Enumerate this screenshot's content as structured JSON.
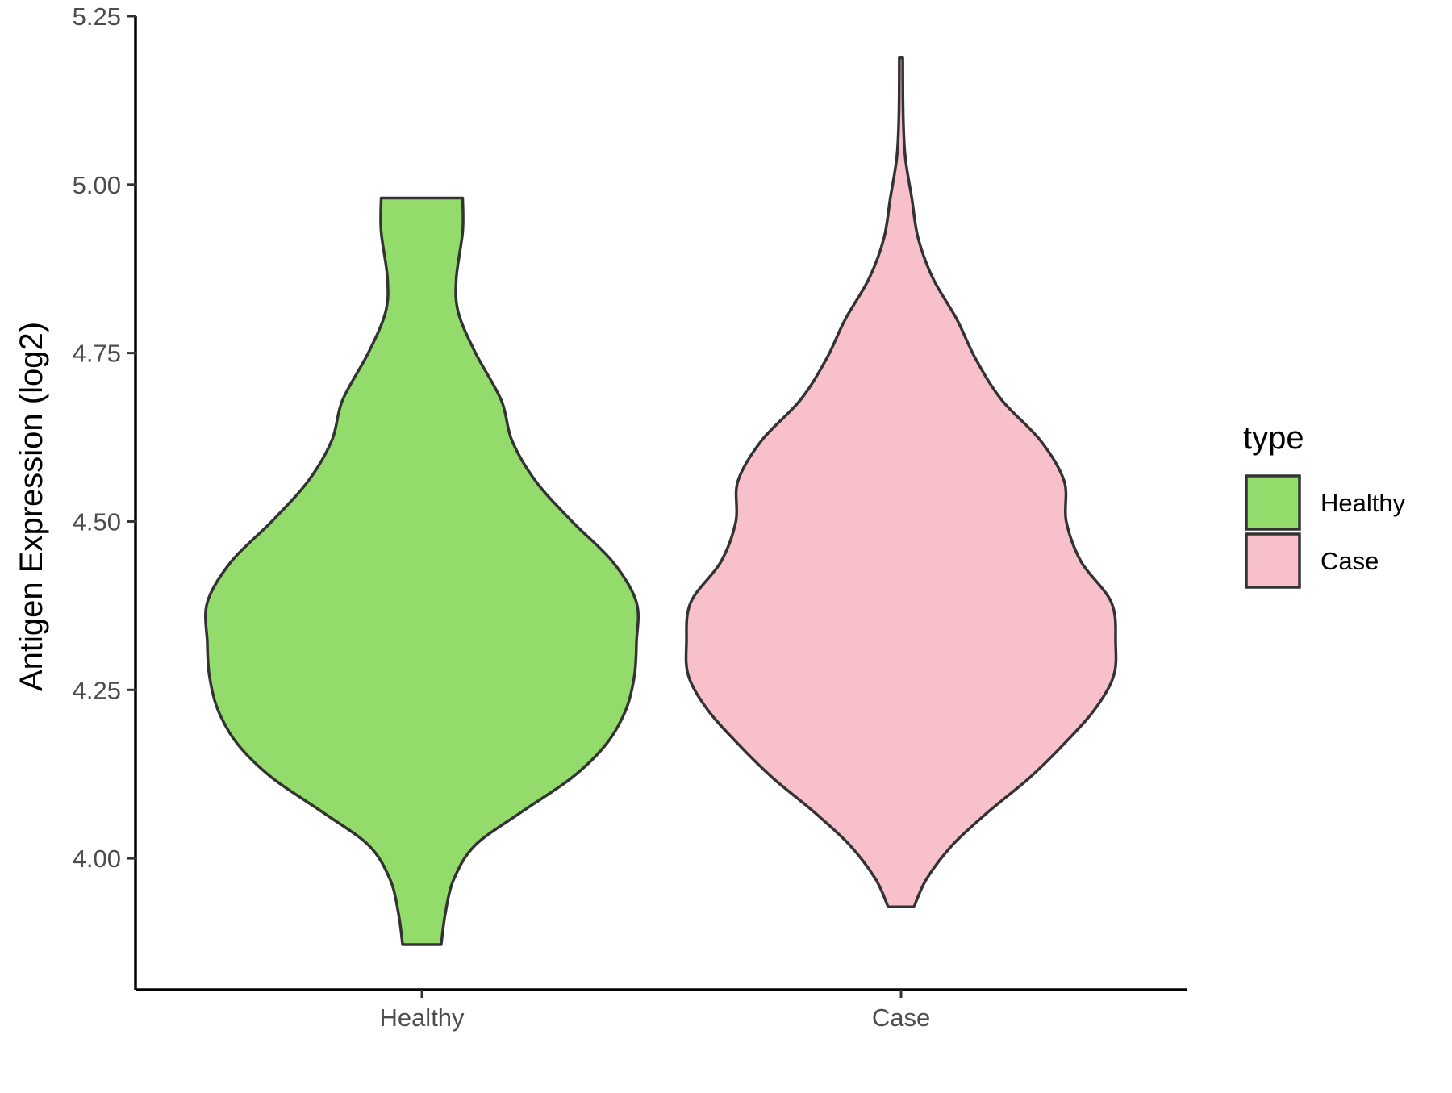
{
  "chart_data": {
    "type": "violin",
    "title": "",
    "xlabel": "",
    "ylabel": "Antigen Expression (log2)",
    "ylim": [
      3.805,
      5.25
    ],
    "yticks": [
      4.0,
      4.25,
      4.5,
      4.75,
      5.0,
      5.25
    ],
    "ytick_labels": [
      "4.00",
      "4.25",
      "4.50",
      "4.75",
      "5.00",
      "5.25"
    ],
    "categories": [
      "Healthy",
      "Case"
    ],
    "grid": false,
    "legend": {
      "title": "type",
      "position": "right",
      "entries": [
        {
          "label": "Healthy",
          "color": "#93dc6b"
        },
        {
          "label": "Case",
          "color": "#f8c0cb"
        }
      ]
    },
    "series": [
      {
        "category": "Healthy",
        "color": "#93dc6b",
        "min": 3.872,
        "max": 4.98,
        "density_profile": [
          [
            3.872,
            0.09
          ],
          [
            3.92,
            0.11
          ],
          [
            3.97,
            0.15
          ],
          [
            4.02,
            0.25
          ],
          [
            4.07,
            0.47
          ],
          [
            4.12,
            0.7
          ],
          [
            4.17,
            0.86
          ],
          [
            4.22,
            0.95
          ],
          [
            4.27,
            0.99
          ],
          [
            4.32,
            1.0
          ],
          [
            4.38,
            1.0
          ],
          [
            4.44,
            0.89
          ],
          [
            4.5,
            0.7
          ],
          [
            4.56,
            0.53
          ],
          [
            4.62,
            0.42
          ],
          [
            4.68,
            0.37
          ],
          [
            4.75,
            0.25
          ],
          [
            4.81,
            0.17
          ],
          [
            4.86,
            0.16
          ],
          [
            4.93,
            0.19
          ],
          [
            4.98,
            0.19
          ]
        ]
      },
      {
        "category": "Case",
        "color": "#f8c0cb",
        "min": 3.928,
        "max": 5.188,
        "density_profile": [
          [
            3.928,
            0.06
          ],
          [
            3.97,
            0.12
          ],
          [
            4.02,
            0.24
          ],
          [
            4.07,
            0.41
          ],
          [
            4.12,
            0.6
          ],
          [
            4.17,
            0.76
          ],
          [
            4.22,
            0.9
          ],
          [
            4.27,
            0.99
          ],
          [
            4.32,
            1.0
          ],
          [
            4.38,
            0.98
          ],
          [
            4.44,
            0.84
          ],
          [
            4.5,
            0.77
          ],
          [
            4.56,
            0.76
          ],
          [
            4.62,
            0.65
          ],
          [
            4.68,
            0.47
          ],
          [
            4.74,
            0.35
          ],
          [
            4.8,
            0.26
          ],
          [
            4.86,
            0.15
          ],
          [
            4.92,
            0.08
          ],
          [
            4.98,
            0.05
          ],
          [
            5.04,
            0.02
          ],
          [
            5.1,
            0.01
          ],
          [
            5.188,
            0.008
          ]
        ]
      }
    ]
  }
}
